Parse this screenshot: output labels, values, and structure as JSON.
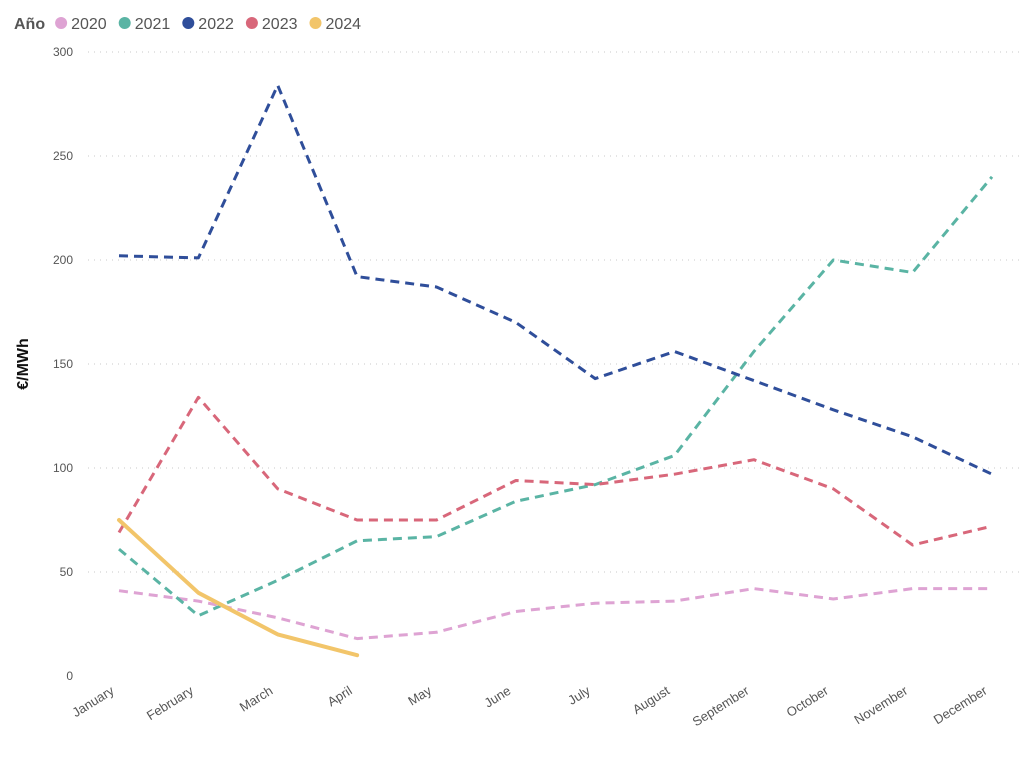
{
  "chart_data": {
    "type": "line",
    "legend_title": "Año",
    "legend_placement": "top-left",
    "ylabel": "€/MWh",
    "xlabel": "",
    "ylim": [
      0,
      300
    ],
    "yticks": [
      0,
      50,
      100,
      150,
      200,
      250,
      300
    ],
    "grid": true,
    "categories": [
      "January",
      "February",
      "March",
      "April",
      "May",
      "June",
      "July",
      "August",
      "September",
      "October",
      "November",
      "December"
    ],
    "series": [
      {
        "name": "2020",
        "color": "#dea3d3",
        "dashed": true,
        "values": [
          41,
          36,
          28,
          18,
          21,
          31,
          35,
          36,
          42,
          37,
          42,
          42
        ]
      },
      {
        "name": "2021",
        "color": "#5ab4a4",
        "dashed": true,
        "values": [
          61,
          29,
          46,
          65,
          67,
          84,
          92,
          106,
          156,
          200,
          194,
          240
        ]
      },
      {
        "name": "2022",
        "color": "#2f4e9a",
        "dashed": true,
        "values": [
          202,
          201,
          284,
          192,
          187,
          170,
          143,
          156,
          142,
          128,
          115,
          97
        ]
      },
      {
        "name": "2023",
        "color": "#d8677a",
        "dashed": true,
        "values": [
          69,
          134,
          90,
          75,
          75,
          94,
          92,
          97,
          104,
          90,
          63,
          72
        ]
      },
      {
        "name": "2024",
        "color": "#f2c56a",
        "dashed": false,
        "values": [
          75,
          40,
          20,
          10,
          null,
          null,
          null,
          null,
          null,
          null,
          null,
          null
        ]
      }
    ]
  }
}
